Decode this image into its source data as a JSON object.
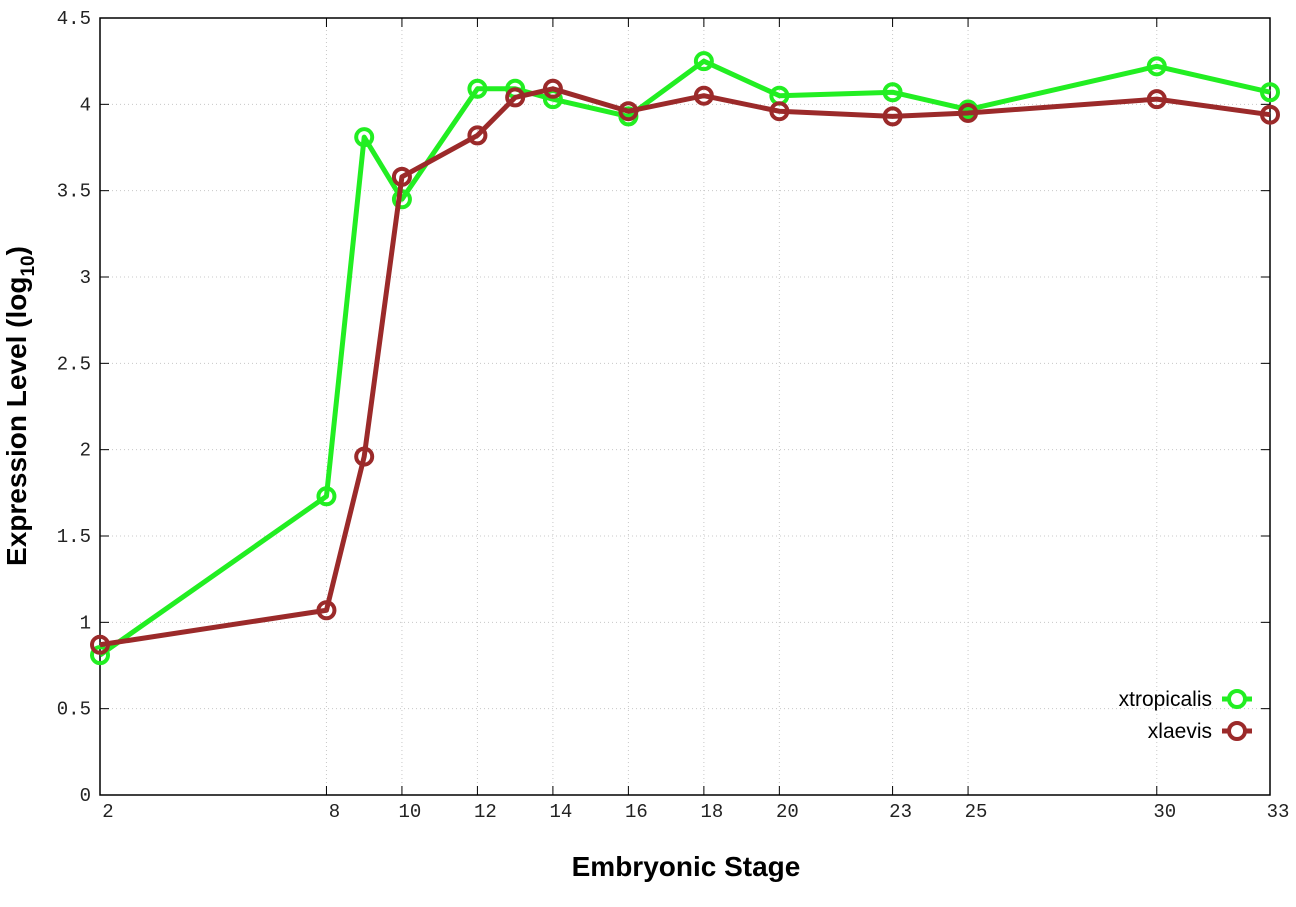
{
  "chart_data": {
    "type": "line",
    "y_label": [
      "Expression Level (log",
      "10",
      ")"
    ],
    "x_label": "Embryonic Stage",
    "x": [
      2,
      8,
      9,
      10,
      12,
      13,
      14,
      16,
      18,
      20,
      23,
      25,
      30,
      33
    ],
    "series": [
      {
        "name": "xtropicalis",
        "color": "#22ee22",
        "values": [
          0.81,
          1.73,
          3.81,
          3.45,
          4.09,
          4.09,
          4.03,
          3.93,
          4.25,
          4.05,
          4.07,
          3.97,
          4.22,
          4.07
        ]
      },
      {
        "name": "xlaevis",
        "color": "#9b2a2a",
        "values": [
          0.87,
          1.07,
          1.96,
          3.58,
          3.82,
          4.04,
          4.09,
          3.96,
          4.05,
          3.96,
          3.93,
          3.95,
          4.03,
          3.94
        ]
      }
    ],
    "xlim": [
      2,
      33
    ],
    "xticks": [
      2,
      8,
      10,
      12,
      14,
      16,
      18,
      20,
      23,
      25,
      30,
      33
    ],
    "ylim": [
      0,
      4.5
    ],
    "yticks": [
      0,
      0.5,
      1,
      1.5,
      2,
      2.5,
      3,
      3.5,
      4,
      4.5
    ],
    "grid": true,
    "legend": "lower right"
  }
}
